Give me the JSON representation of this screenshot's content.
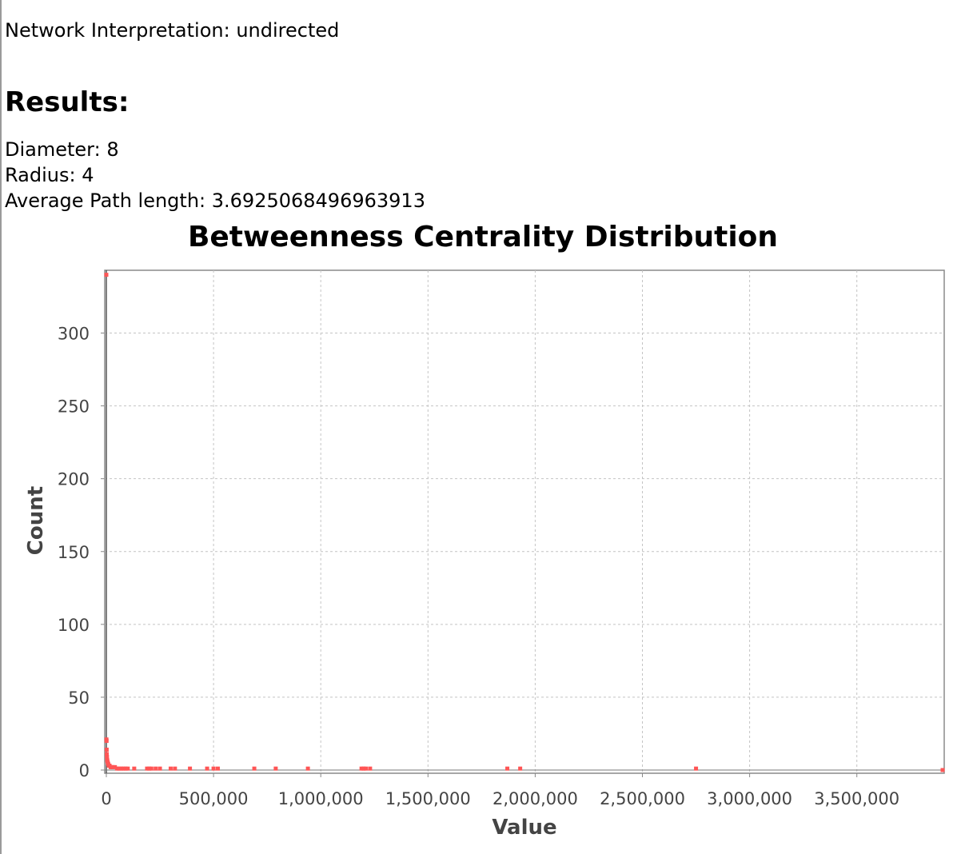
{
  "report": {
    "interpretation": "Network Interpretation: undirected",
    "results_heading": "Results:",
    "diameter": "Diameter: 8",
    "radius": "Radius: 4",
    "average_path_length": "Average Path length: 3.6925068496963913"
  },
  "chart_data": {
    "type": "scatter",
    "title": "Betweenness Centrality Distribution",
    "xlabel": "Value",
    "ylabel": "Count",
    "xlim": [
      0,
      3900000
    ],
    "ylim": [
      0,
      342
    ],
    "xticks": [
      0,
      500000,
      1000000,
      1500000,
      2000000,
      2500000,
      3000000,
      3500000
    ],
    "xtick_labels": [
      "0",
      "500,000",
      "1,000,000",
      "1,500,000",
      "2,000,000",
      "2,500,000",
      "3,000,000",
      "3,500,000"
    ],
    "yticks": [
      0,
      50,
      100,
      150,
      200,
      250,
      300
    ],
    "ytick_labels": [
      "0",
      "50",
      "100",
      "150",
      "200",
      "250",
      "300"
    ],
    "grid": true,
    "marker_color": "#ff5555",
    "series": [
      {
        "x": [
          0,
          500,
          1000,
          1500,
          2000,
          3000,
          4000,
          5000,
          7000,
          9000,
          12000,
          15000,
          20000,
          25000,
          30000,
          40000,
          50000,
          60000,
          70000,
          80000,
          90000,
          100000,
          130000,
          190000,
          200000,
          210000,
          230000,
          250000,
          300000,
          320000,
          390000,
          470000,
          500000,
          520000,
          690000,
          790000,
          940000,
          1190000,
          1200000,
          1210000,
          1230000,
          1870000,
          1930000,
          2750000,
          3900000
        ],
        "y": [
          340,
          21,
          20,
          14,
          11,
          9,
          7,
          6,
          5,
          4,
          3,
          3,
          2,
          2,
          2,
          2,
          1,
          1,
          1,
          1,
          1,
          1,
          1,
          1,
          1,
          1,
          1,
          1,
          1,
          1,
          1,
          1,
          1,
          1,
          1,
          1,
          1,
          1,
          1,
          1,
          1,
          1,
          1,
          1,
          0
        ]
      }
    ]
  }
}
